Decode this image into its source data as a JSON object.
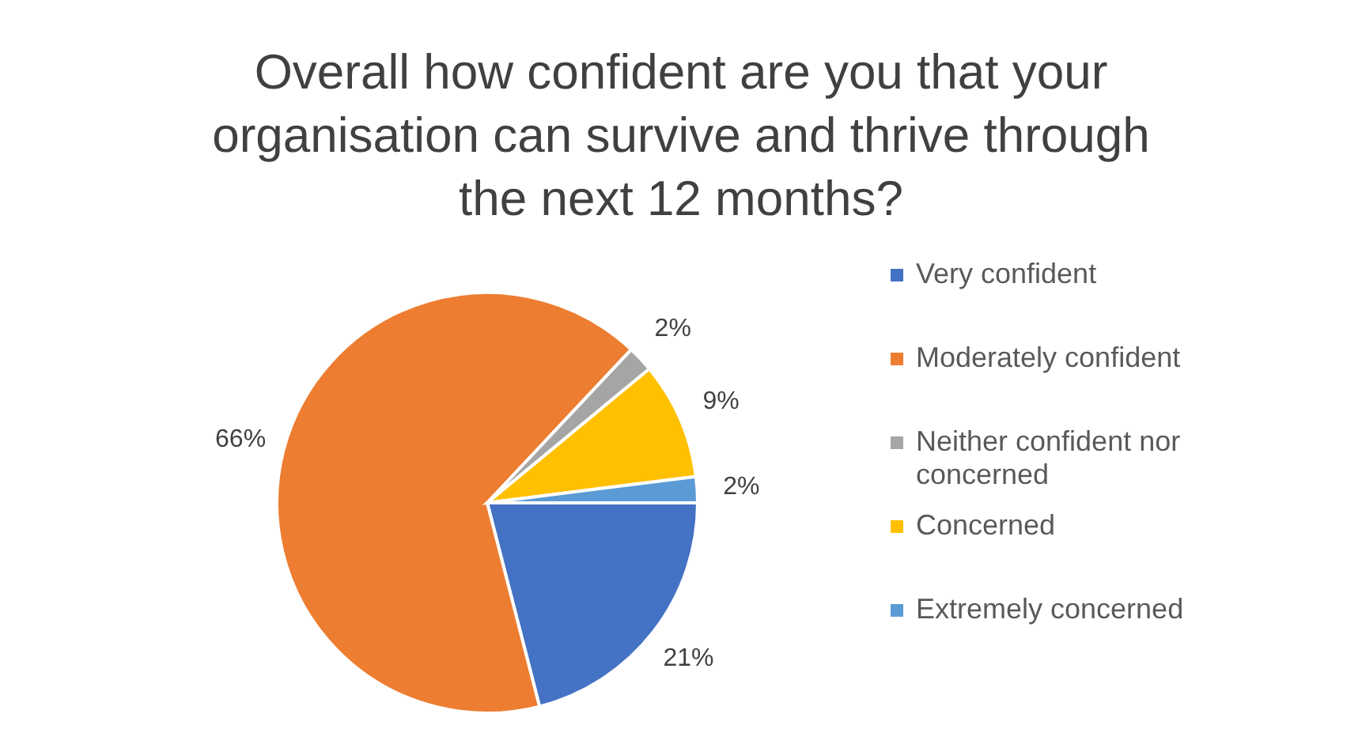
{
  "chart_data": {
    "type": "pie",
    "title": "Overall how confident are you that your organisation can survive and thrive through the next 12 months?",
    "categories": [
      "Very confident",
      "Moderately confident",
      "Neither confident nor concerned",
      "Concerned",
      "Extremely concerned"
    ],
    "values": [
      21,
      66,
      2,
      9,
      2
    ],
    "value_labels": [
      "21%",
      "66%",
      "2%",
      "9%",
      "2%"
    ],
    "colors": [
      "#4472c4",
      "#ed7d31",
      "#a5a5a5",
      "#ffc000",
      "#5b9bd5"
    ],
    "legend": "right"
  }
}
